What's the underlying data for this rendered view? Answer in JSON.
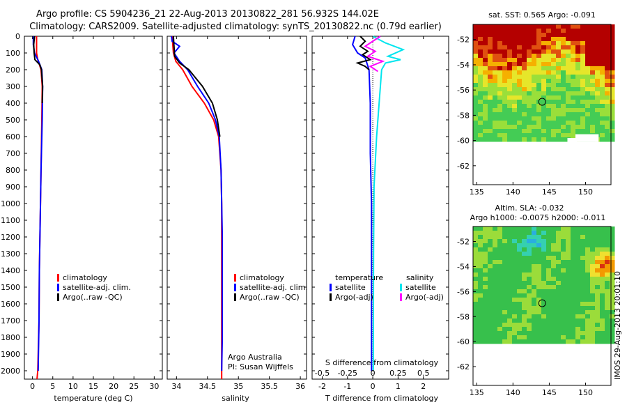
{
  "header": {
    "line1": "Argo profile: CS 5904236_21 22-Aug-2013 20130822_281 56.932S 144.02E",
    "line2": "Climatology: CARS2009. Satellite-adjusted climatology: synTS_20130822.nc (0.79d earlier)"
  },
  "colors": {
    "climatology": "#ff0000",
    "satellite": "#0000ff",
    "argo": "#000000",
    "salinity_satellite": "#00e5ee",
    "salinity_argo": "#ff00ff"
  },
  "chart_data": [
    {
      "id": "temperature",
      "type": "line",
      "xlabel": "temperature (deg C)",
      "ylabel": "",
      "xlim": [
        -2,
        32
      ],
      "ylim": [
        2050,
        0
      ],
      "xticks": [
        0,
        5,
        10,
        15,
        20,
        25,
        30
      ],
      "yticks": [
        0,
        100,
        200,
        300,
        400,
        500,
        600,
        700,
        800,
        900,
        1000,
        1100,
        1200,
        1300,
        1400,
        1500,
        1600,
        1700,
        1800,
        1900,
        2000
      ],
      "legend": [
        "climatology",
        "satellite-adj. clim.",
        "Argo(..raw -QC)"
      ],
      "series": [
        {
          "name": "climatology",
          "color": "#ff0000",
          "x": [
            1.0,
            1.0,
            1.0,
            1.3,
            2.1,
            2.4,
            2.3,
            2.1,
            1.9,
            1.7,
            1.6,
            1.3,
            1.1
          ],
          "y": [
            0,
            50,
            100,
            140,
            200,
            300,
            500,
            800,
            1100,
            1400,
            1700,
            2000,
            2050
          ]
        },
        {
          "name": "satellite-adj. clim.",
          "color": "#0000ff",
          "x": [
            0.2,
            0.2,
            0.5,
            1.5,
            2.3,
            2.5,
            2.4,
            2.1,
            1.9,
            1.7,
            1.6,
            1.4
          ],
          "y": [
            0,
            50,
            100,
            150,
            200,
            300,
            500,
            800,
            1100,
            1400,
            1700,
            2000
          ]
        },
        {
          "name": "Argo(..raw -QC)",
          "color": "#000000",
          "x": [
            0.5,
            0.3,
            0.4,
            0.6,
            1.8,
            2.2,
            2.5,
            2.4
          ],
          "y": [
            0,
            50,
            100,
            140,
            170,
            200,
            300,
            400
          ]
        }
      ]
    },
    {
      "id": "salinity",
      "type": "line",
      "xlabel": "salinity",
      "ylabel": "",
      "xlim": [
        33.85,
        36.1
      ],
      "ylim": [
        2050,
        0
      ],
      "xticks": [
        34,
        34.5,
        35,
        35.5,
        36
      ],
      "legend": [
        "climatology",
        "satellite-adj. clim.",
        "Argo(..raw -QC)"
      ],
      "annotation": [
        "Argo Australia",
        "PI: Susan Wijffels"
      ],
      "series": [
        {
          "name": "climatology",
          "color": "#ff0000",
          "x": [
            33.93,
            33.94,
            33.95,
            33.99,
            34.1,
            34.25,
            34.45,
            34.6,
            34.68,
            34.72,
            34.73,
            34.73,
            34.73,
            34.73,
            34.73
          ],
          "y": [
            0,
            50,
            100,
            150,
            200,
            300,
            400,
            500,
            600,
            800,
            1000,
            1200,
            1500,
            1800,
            2050
          ]
        },
        {
          "name": "satellite-adj. clim.",
          "color": "#0000ff",
          "x": [
            33.92,
            33.93,
            34.05,
            33.96,
            34.05,
            34.18,
            34.34,
            34.52,
            34.63,
            34.69,
            34.72,
            34.73,
            34.74,
            34.74,
            34.74,
            34.73
          ],
          "y": [
            0,
            30,
            60,
            100,
            150,
            200,
            300,
            400,
            500,
            600,
            800,
            1000,
            1200,
            1500,
            1800,
            2000
          ]
        },
        {
          "name": "Argo(..raw -QC)",
          "color": "#000000",
          "x": [
            33.95,
            33.96,
            33.97,
            34.05,
            34.2,
            34.42,
            34.58,
            34.66,
            34.7
          ],
          "y": [
            0,
            60,
            120,
            160,
            200,
            300,
            400,
            500,
            600
          ]
        }
      ]
    },
    {
      "id": "difference",
      "type": "line",
      "xlabel": "T difference from climatology",
      "xlabel_top": "S difference from climatology",
      "xlim": [
        -2.4,
        3.0
      ],
      "ylim": [
        2050,
        0
      ],
      "xticks_T": [
        -2,
        -1,
        0,
        1,
        2
      ],
      "xticks_S": [
        "-0.5",
        "-0.25",
        "0",
        "0.25",
        "0.5"
      ],
      "legend_titles": [
        "temperature",
        "salinity"
      ],
      "legend_temperature": [
        "satellite",
        "Argo(-adj)"
      ],
      "legend_salinity": [
        "satellite",
        "Argo(-adj)"
      ],
      "series": [
        {
          "name": "temperature satellite",
          "color": "#0000ff",
          "x": [
            -0.7,
            -0.8,
            -0.6,
            -0.3,
            -0.15,
            -0.1,
            -0.1,
            -0.05,
            -0.05,
            -0.05,
            -0.05
          ],
          "y": [
            0,
            50,
            100,
            130,
            200,
            400,
            700,
            1000,
            1400,
            1800,
            2000
          ]
        },
        {
          "name": "temperature Argo(-adj)",
          "color": "#000000",
          "x": [
            -0.5,
            -0.3,
            -0.5,
            -0.2,
            -0.4,
            -0.1,
            -0.6,
            -0.3,
            -0.15
          ],
          "y": [
            0,
            30,
            60,
            90,
            110,
            140,
            160,
            180,
            200
          ]
        },
        {
          "name": "salinity satellite",
          "color": "#00e5ee",
          "x": [
            0.0,
            0.5,
            1.2,
            0.6,
            1.1,
            0.5,
            0.35,
            0.3,
            0.25,
            0.15,
            0.05,
            0.03,
            0.02
          ],
          "y": [
            0,
            40,
            80,
            120,
            140,
            160,
            200,
            300,
            400,
            600,
            900,
            1300,
            2000
          ]
        },
        {
          "name": "salinity Argo(-adj)",
          "color": "#ff00ff",
          "x": [
            0.3,
            -0.3,
            0.1,
            -0.2,
            0.4,
            -0.1,
            0.2
          ],
          "y": [
            0,
            60,
            90,
            120,
            150,
            180,
            210
          ]
        }
      ]
    },
    {
      "id": "sst-map",
      "type": "heatmap",
      "title": "sat. SST: 0.565 Argo: -0.091",
      "xlim": [
        134.5,
        153.5
      ],
      "ylim": [
        -63.5,
        -50.8
      ],
      "xticks": [
        135,
        140,
        145,
        150
      ],
      "yticks": [
        -52,
        -54,
        -56,
        -58,
        -60,
        -62
      ],
      "marker": {
        "lon": 144.02,
        "lat": -56.932
      }
    },
    {
      "id": "sla-map",
      "type": "heatmap",
      "title_line1": "Altim. SLA: -0.032",
      "title_line2": "Argo h1000: -0.0075 h2000: -0.011",
      "xlim": [
        134.5,
        153.5
      ],
      "ylim": [
        -63.5,
        -50.8
      ],
      "xticks": [
        135,
        140,
        145,
        150
      ],
      "yticks": [
        -52,
        -54,
        -56,
        -58,
        -60,
        -62
      ],
      "marker": {
        "lon": 144.02,
        "lat": -56.932
      }
    }
  ],
  "footer_stamp": "IMOS 29-Aug-2013 20:01:10"
}
